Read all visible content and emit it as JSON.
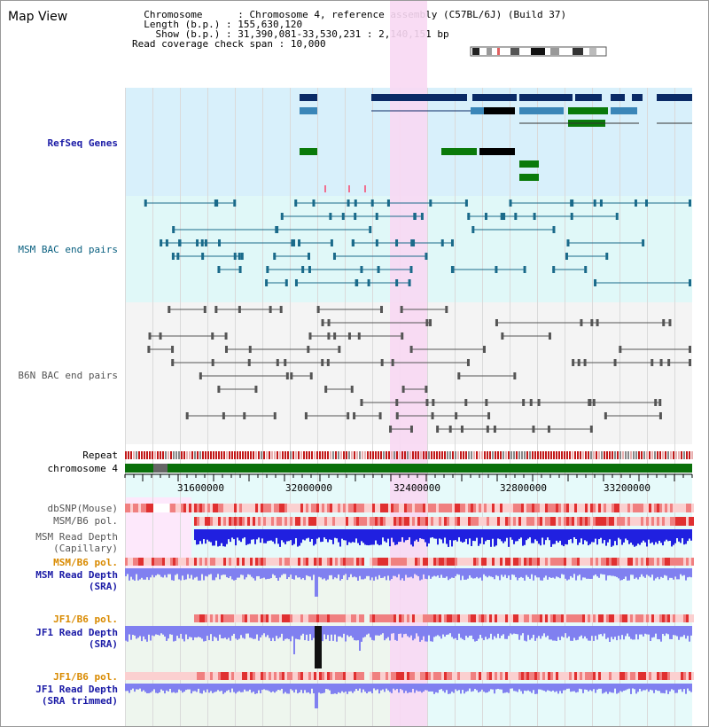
{
  "title": "Map View",
  "info": {
    "chromosome_label": "Chromosome",
    "chromosome_value": "Chromosome 4, reference assembly (C57BL/6J) (Build 37)",
    "length_label": "Length (b.p.)",
    "length_value": "155,630,120",
    "show_label": "Show (b.p.)",
    "show_value": "31,390,081-33,530,231 : 2,140,151 bp",
    "coverage_label": "Read coverage check span",
    "coverage_value": "10,000"
  },
  "tracks": {
    "refseq": "RefSeq Genes",
    "msm_bac": "MSM BAC end pairs",
    "b6n_bac": "B6N BAC end pairs",
    "repeat": "Repeat",
    "chromosome": "chromosome 4",
    "dbsnp": "dbSNP(Mouse)",
    "msm_b6_pol": "MSM/B6 pol.",
    "msm_depth_cap_1": "MSM Read Depth",
    "msm_depth_cap_2": "(Capillary)",
    "msm_b6_pol_sra": "MSM/B6 pol.",
    "msm_depth_sra_1": "MSM Read Depth",
    "msm_depth_sra_2": "(SRA)",
    "jf1_b6_pol": "JF1/B6 pol.",
    "jf1_depth_1": "JF1 Read Depth",
    "jf1_depth_2": "(SRA)",
    "jf1_b6_pol_2": "JF1/B6 pol.",
    "jf1_trim_1": "JF1 Read Depth",
    "jf1_trim_2": "(SRA trimmed)"
  },
  "axis_ticks": [
    "31600000",
    "32000000",
    "32400000",
    "32800000",
    "33200000"
  ],
  "colors": {
    "highlight": "#f8d8f3",
    "refseq_dark": "#0a2a66",
    "refseq_mid": "#3a86b8",
    "refseq_green": "#0a7a0a",
    "chromosome_band": "#0a700a",
    "depth_blue": "#2020e0",
    "depth_light": "#8080f0"
  }
}
